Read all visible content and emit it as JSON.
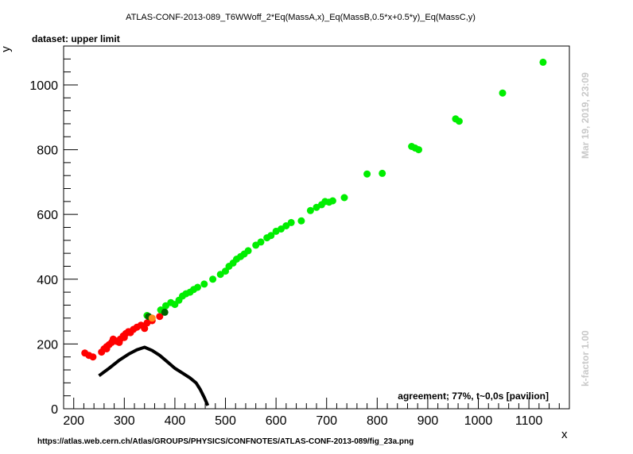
{
  "chart_data": {
    "type": "scatter",
    "title": "ATLAS-CONF-2013-089_T6WWoff_2*Eq(MassA,x)_Eq(MassB,0.5*x+0.5*y)_Eq(MassC,y)",
    "subtitle": "dataset: upper limit",
    "xlabel": "x",
    "ylabel": "y",
    "xlim": [
      180,
      1180
    ],
    "ylim": [
      0,
      1120
    ],
    "xticks": [
      200,
      300,
      400,
      500,
      600,
      700,
      800,
      900,
      1000,
      1100
    ],
    "yticks": [
      0,
      200,
      400,
      600,
      800,
      1000
    ],
    "grid": false,
    "agreement_text": "agreement; 77%, t~0,0s [pavilion]",
    "timestamp_text": "Mar 19, 2019, 23:09",
    "kfactor_text": "k-factor 1.00",
    "source_url": "https://atlas.web.cern.ch/Atlas/GROUPS/PHYSICS/CONFNOTES/ATLAS-CONF-2013-089/fig_23a.png",
    "colors": {
      "excluded": "#ff0000",
      "allowed": "#00ee00",
      "dark": "#006400",
      "orange": "#ff8c1a",
      "line": "#000000"
    },
    "series": [
      {
        "marker": "red",
        "x": [
          222,
          230,
          238,
          255,
          260,
          265,
          270,
          275,
          280,
          285,
          292,
          298,
          303,
          308,
          318,
          325,
          333,
          345,
          355,
          370,
          265,
          278,
          290,
          300,
          312,
          340,
          350
        ],
        "y": [
          172,
          165,
          160,
          175,
          185,
          192,
          198,
          205,
          212,
          208,
          215,
          225,
          232,
          238,
          245,
          252,
          258,
          265,
          272,
          285,
          185,
          215,
          205,
          220,
          235,
          248,
          278
        ]
      },
      {
        "marker": "green",
        "x": [
          345,
          372,
          382,
          392,
          400,
          408,
          415,
          422,
          430,
          437,
          445,
          458,
          475,
          490,
          500,
          507,
          515,
          522,
          530,
          537,
          545,
          560,
          570,
          582,
          590,
          600,
          610,
          620,
          630,
          650,
          668,
          680,
          690,
          697,
          705,
          712,
          735,
          780,
          810,
          868,
          875,
          882,
          955,
          962,
          1048,
          1128
        ],
        "y": [
          288,
          305,
          318,
          328,
          322,
          335,
          348,
          355,
          360,
          368,
          375,
          385,
          400,
          415,
          425,
          440,
          450,
          462,
          470,
          478,
          488,
          505,
          515,
          528,
          535,
          548,
          555,
          565,
          575,
          580,
          612,
          622,
          630,
          640,
          638,
          642,
          652,
          725,
          727,
          810,
          805,
          800,
          895,
          888,
          975,
          1070
        ]
      },
      {
        "marker": "dark",
        "x": [
          348,
          380
        ],
        "y": [
          285,
          298
        ]
      },
      {
        "marker": "orange",
        "x": [
          355
        ],
        "y": [
          280
        ]
      },
      {
        "marker": "line",
        "x": [
          250,
          270,
          290,
          310,
          325,
          340,
          355,
          370,
          385,
          400,
          415,
          430,
          442,
          450,
          458,
          465
        ],
        "y": [
          102,
          125,
          150,
          170,
          182,
          190,
          180,
          165,
          145,
          125,
          110,
          95,
          80,
          60,
          35,
          10
        ]
      }
    ]
  }
}
